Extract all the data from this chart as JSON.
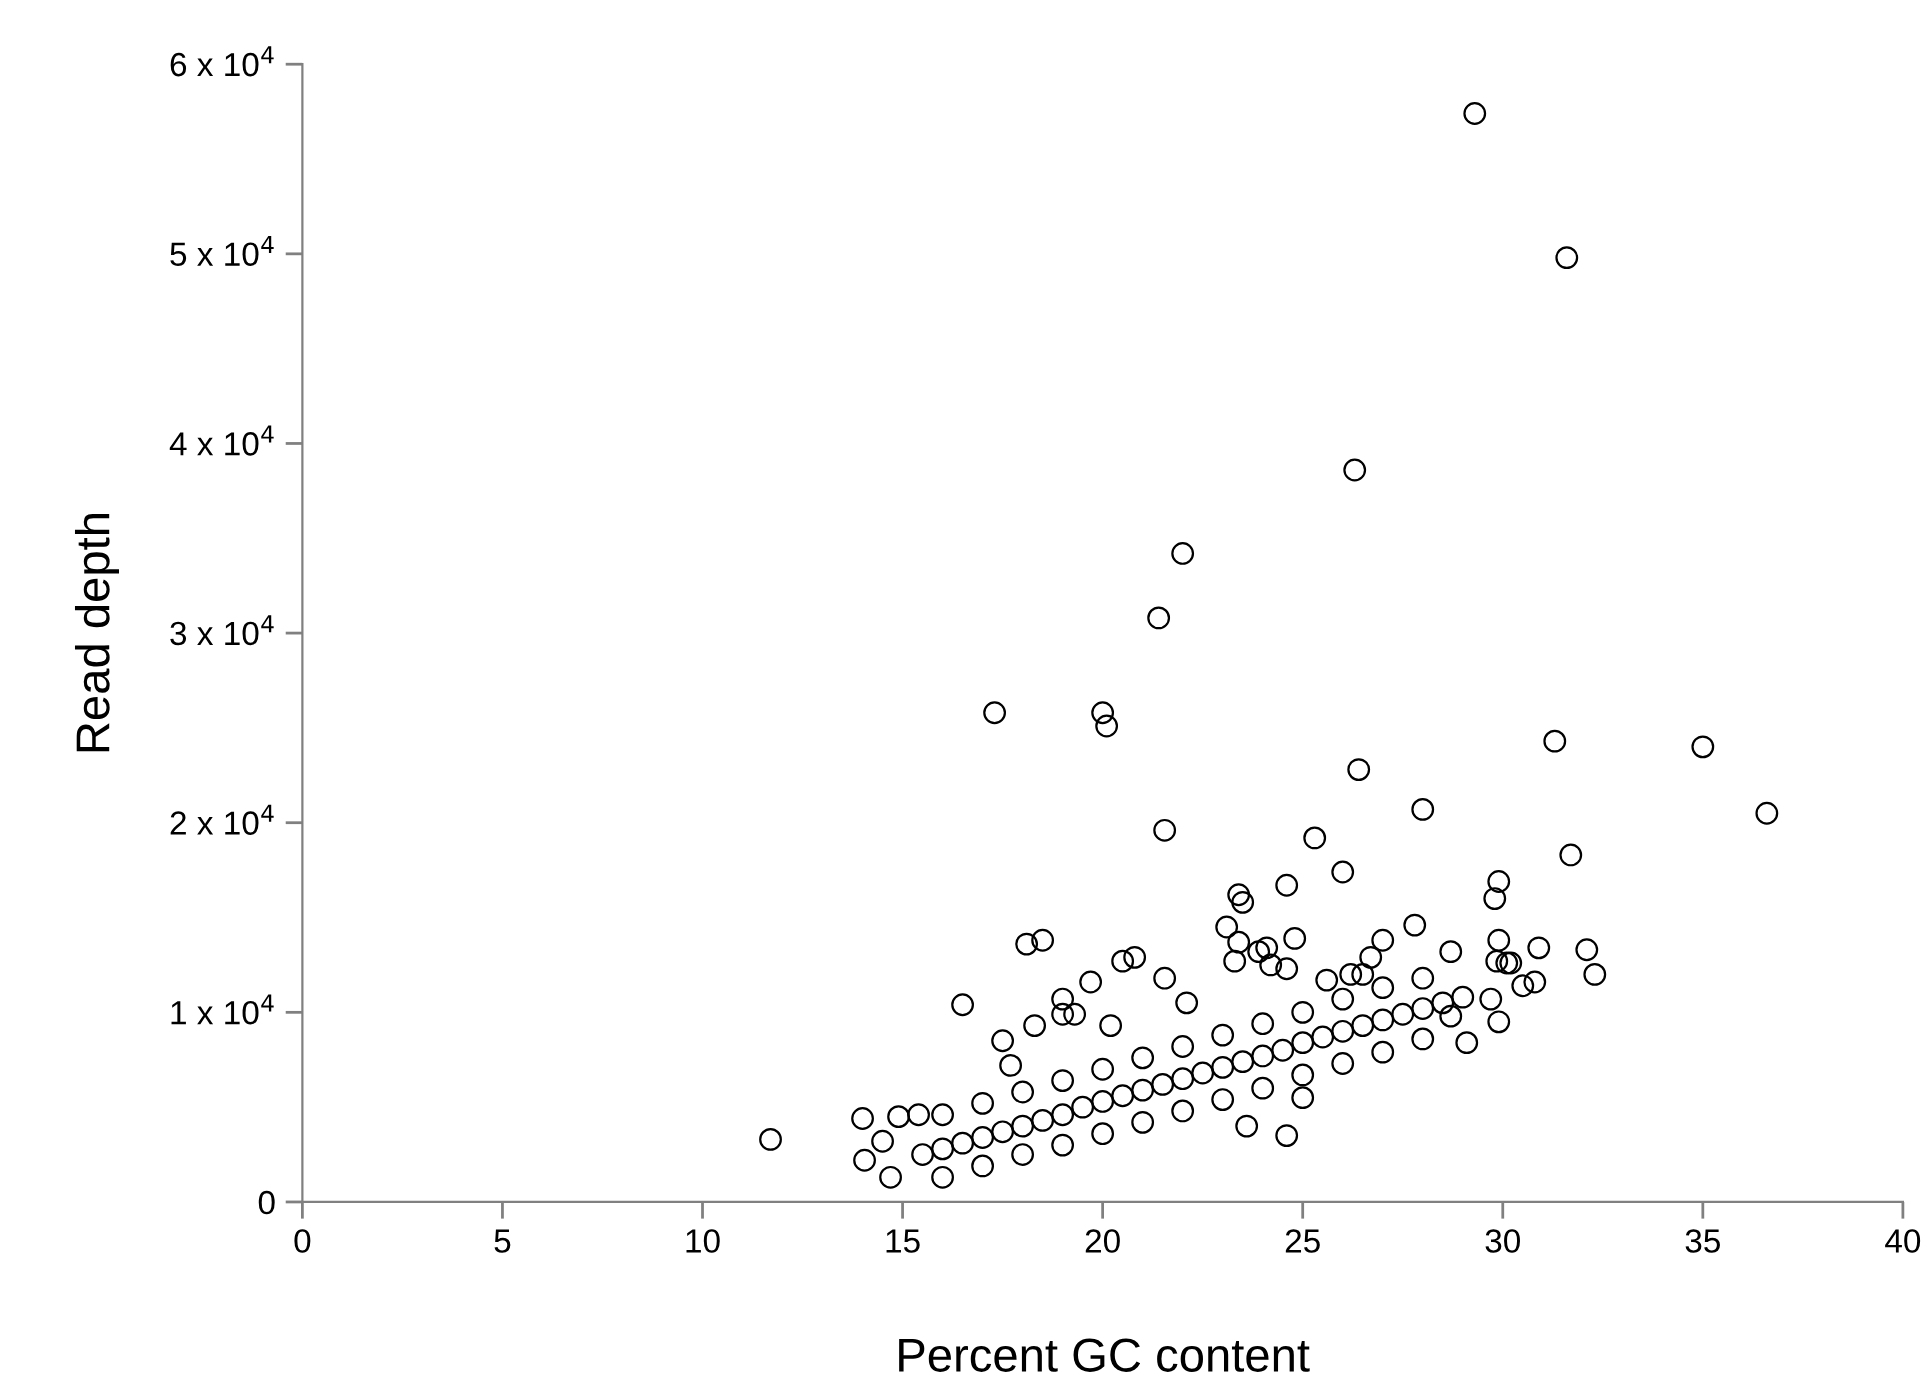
{
  "chart_data": {
    "type": "scatter",
    "xlabel": "Percent GC content",
    "ylabel": "Read depth",
    "marker": "circle",
    "color": "#000000",
    "grid": false,
    "xlim": [
      0,
      40
    ],
    "xticks": [
      0,
      5,
      10,
      15,
      20,
      25,
      30,
      35,
      40
    ],
    "ylim": [
      0,
      60000
    ],
    "yticks": [
      0,
      {
        "value": 10000,
        "label": "1 x 10$^{4}$"
      },
      {
        "value": 20000,
        "label": "2 x 10$^{4}$"
      },
      {
        "value": 30000,
        "label": "3 x 10$^{4}$"
      },
      {
        "value": 40000,
        "label": "4 x 10$^{4}$"
      },
      {
        "value": 50000,
        "label": "5 x 10$^{4}$"
      },
      {
        "value": 60000,
        "label": "6 x 10$^{4}$"
      }
    ],
    "x": [
      29.3,
      31.6,
      26.3,
      22.0,
      21.4,
      17.3,
      20.0,
      20.1,
      31.3,
      35.0,
      36.6,
      26.4,
      28.0,
      21.55,
      25.3,
      26.0,
      31.7,
      24.6,
      29.9,
      29.8,
      23.4,
      23.5,
      23.1,
      27.8,
      18.1,
      18.5,
      32.1,
      28.7,
      30.9,
      11.7,
      14.0,
      14.05,
      14.9,
      15.4,
      16.5,
      20.5,
      20.8,
      19.7,
      21.55,
      19.0,
      19.3,
      19.0,
      20.2,
      22.1,
      17.5,
      18.3,
      17.7,
      23.3,
      14.7,
      14.5,
      23.4,
      23.9,
      24.1,
      24.8,
      24.2,
      24.6,
      27.0,
      26.7,
      25.6,
      26.2,
      26.5,
      29.9,
      29.85,
      30.1,
      30.2,
      32.3,
      30.8,
      30.5,
      29.7,
      29.9,
      29.1,
      24.6,
      23.6,
      25.0,
      28.7,
      15.5,
      16,
      16.5,
      17,
      17.5,
      18,
      18.5,
      19,
      19.5,
      20,
      20.5,
      21,
      21.5,
      22,
      22.5,
      23,
      23.5,
      24,
      24.5,
      25,
      25.5,
      26,
      26.5,
      27,
      27.5,
      28,
      28.5,
      29,
      16,
      17,
      18,
      19,
      20,
      21,
      22,
      23,
      24,
      25,
      26,
      27,
      28,
      16,
      17,
      18,
      19,
      20,
      21,
      22,
      23,
      24,
      25,
      26,
      27,
      28
    ],
    "values": [
      57400,
      49800,
      38600,
      34200,
      30800,
      25800,
      25800,
      25100,
      24300,
      24000,
      20500,
      22800,
      20700,
      19600,
      19200,
      17400,
      18300,
      16700,
      16900,
      16000,
      16200,
      15800,
      14500,
      14600,
      13600,
      13800,
      13300,
      13200,
      13400,
      3300,
      4400,
      2200,
      4500,
      4600,
      10400,
      12700,
      12900,
      11600,
      11800,
      10700,
      9900,
      9900,
      9300,
      10500,
      8500,
      9300,
      7200,
      12700,
      1300,
      3200,
      13700,
      13200,
      13400,
      13900,
      12500,
      12300,
      13800,
      12900,
      11700,
      12000,
      12000,
      13800,
      12700,
      12600,
      12600,
      12000,
      11600,
      11400,
      10700,
      9500,
      8400,
      3500,
      4000,
      5500,
      9800,
      2500,
      2800,
      3100,
      3400,
      3700,
      4000,
      4300,
      4600,
      5000,
      5300,
      5600,
      5900,
      6200,
      6500,
      6800,
      7100,
      7400,
      7700,
      8000,
      8400,
      8700,
      9000,
      9300,
      9600,
      9900,
      10200,
      10500,
      10800,
      4600,
      5200,
      5800,
      6400,
      7000,
      7600,
      8200,
      8800,
      9400,
      10000,
      10700,
      11300,
      11800,
      1300,
      1900,
      2500,
      3000,
      3600,
      4200,
      4800,
      5400,
      6000,
      6700,
      7300,
      7900,
      8600
    ]
  }
}
